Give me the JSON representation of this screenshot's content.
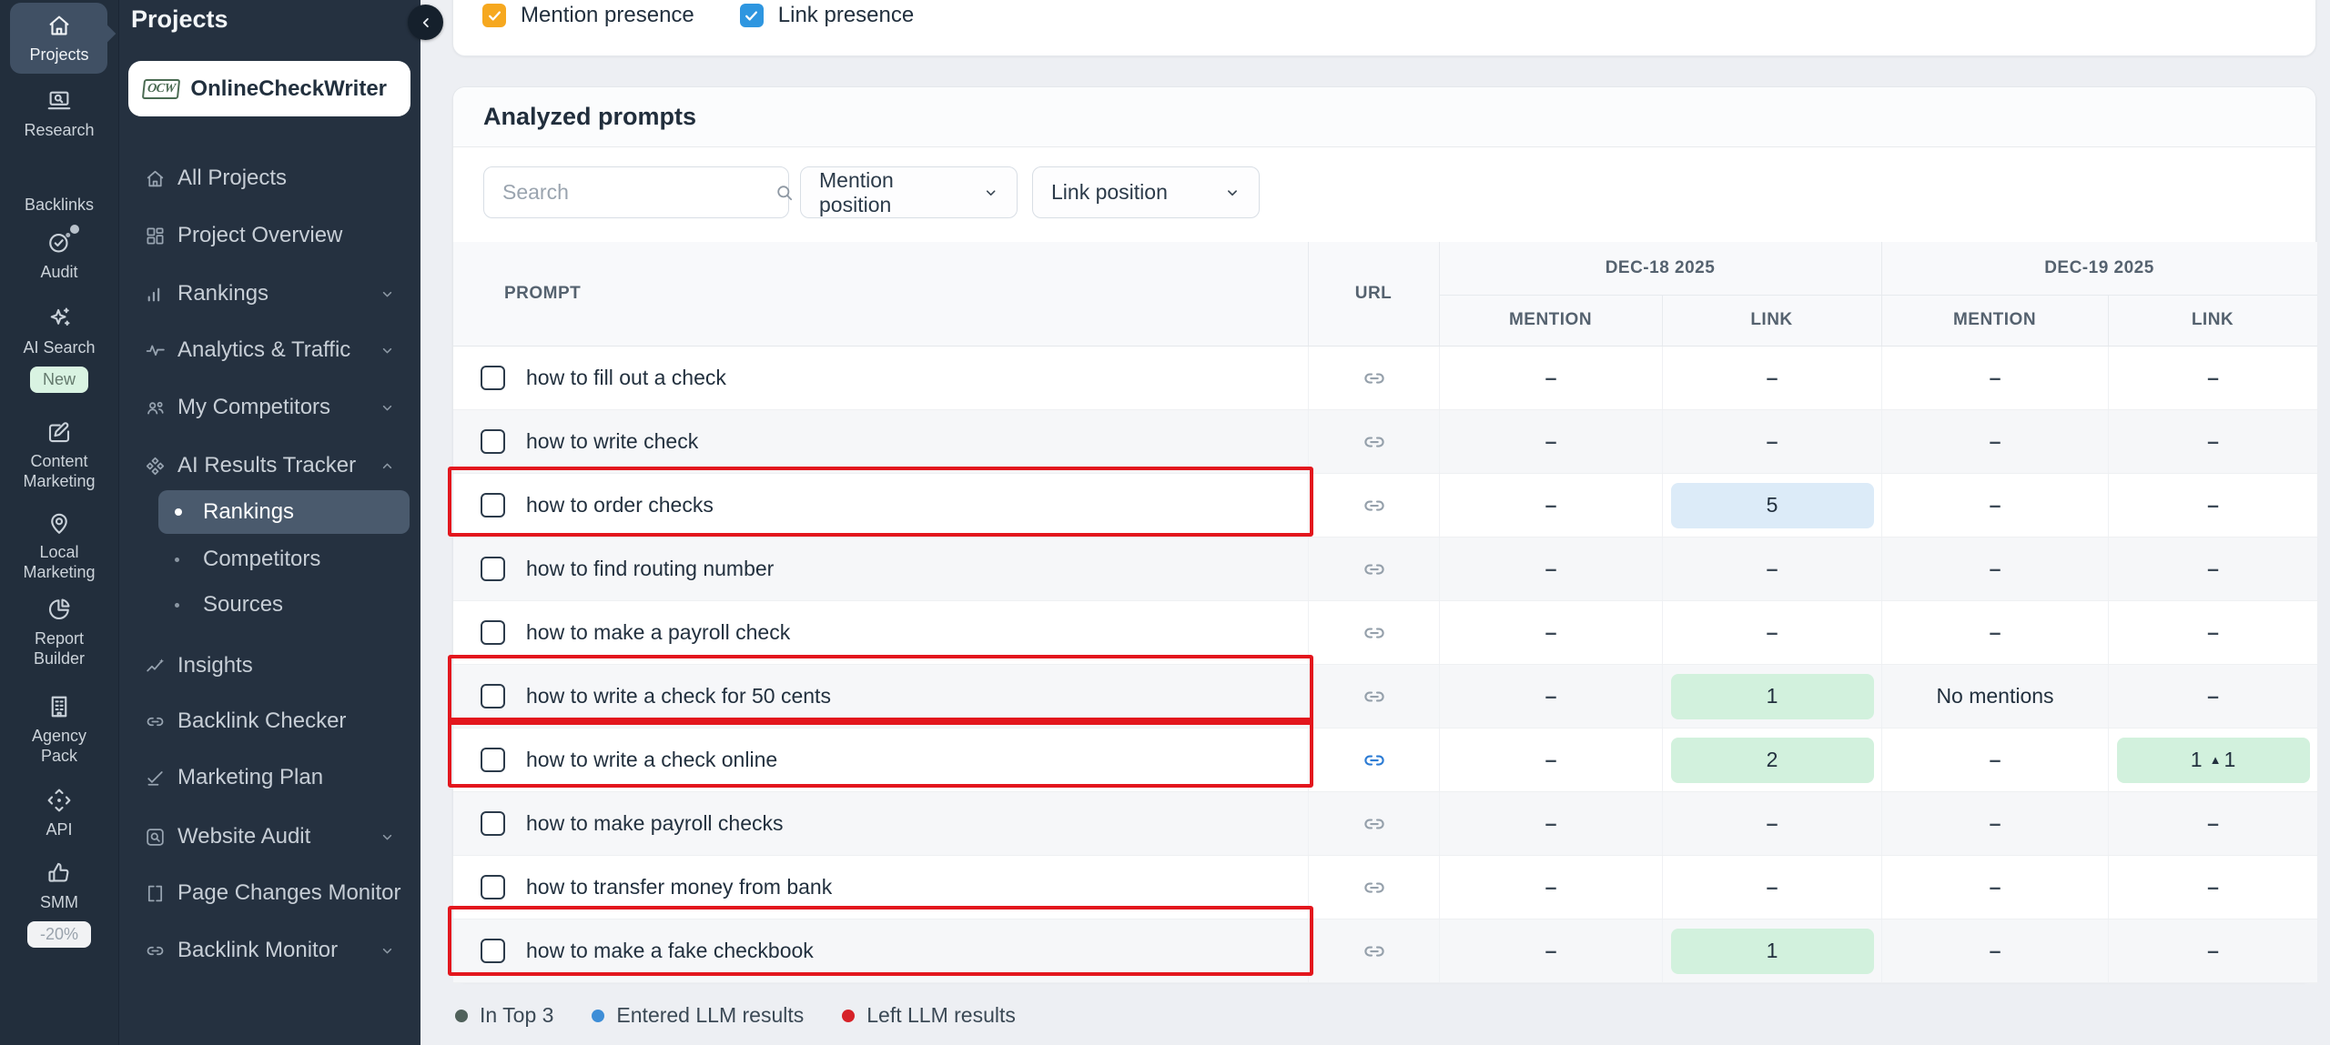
{
  "rail": {
    "items": [
      {
        "label": "Projects",
        "icon": "home",
        "selected": true
      },
      {
        "label": "Research",
        "icon": "research"
      },
      {
        "label": "Backlinks",
        "icon": "none"
      },
      {
        "label": "Audit",
        "icon": "audit",
        "notification": true
      },
      {
        "label": "AI Search",
        "icon": "sparkles",
        "badge": "New",
        "badge_style": "mint"
      },
      {
        "label": "Content Marketing",
        "icon": "content"
      },
      {
        "label": "Local Marketing",
        "icon": "pin"
      },
      {
        "label": "Report Builder",
        "icon": "pie"
      },
      {
        "label": "Agency Pack",
        "icon": "building"
      },
      {
        "label": "API",
        "icon": "api"
      },
      {
        "label": "SMM",
        "icon": "thumb",
        "badge": "-20%",
        "badge_style": "white"
      }
    ]
  },
  "sidebar": {
    "title": "Projects",
    "items": [
      {
        "label": "All Projects",
        "icon": "home"
      },
      {
        "label": "Project Overview",
        "icon": "grid"
      },
      {
        "label": "Rankings",
        "icon": "bars",
        "chevron": "down"
      },
      {
        "label": "Analytics & Traffic",
        "icon": "pulse",
        "chevron": "down"
      },
      {
        "label": "My Competitors",
        "icon": "users",
        "chevron": "down"
      },
      {
        "label": "AI Results Tracker",
        "icon": "ai",
        "chevron": "up"
      },
      {
        "label": "Rankings",
        "sub": true,
        "selected": true
      },
      {
        "label": "Competitors",
        "sub": true
      },
      {
        "label": "Sources",
        "sub": true
      },
      {
        "label": "Insights",
        "icon": "insights"
      },
      {
        "label": "Backlink Checker",
        "icon": "link"
      },
      {
        "label": "Marketing Plan",
        "icon": "plan"
      },
      {
        "label": "Website Audit",
        "icon": "auditsearch",
        "chevron": "down"
      },
      {
        "label": "Page Changes Monitor",
        "icon": "book"
      },
      {
        "label": "Backlink Monitor",
        "icon": "link",
        "chevron": "down"
      }
    ]
  },
  "project": {
    "name": "OnlineCheckWriter",
    "logo_text": "OCW"
  },
  "presence_filters": [
    {
      "label": "Mention presence",
      "checked": true,
      "color": "#f6a81f"
    },
    {
      "label": "Link presence",
      "checked": true,
      "color": "#2e96e0"
    }
  ],
  "panel": {
    "title": "Analyzed prompts",
    "search_placeholder": "Search",
    "filters": [
      {
        "label": "Mention position"
      },
      {
        "label": "Link position"
      }
    ]
  },
  "table": {
    "prompt_header": "PROMPT",
    "url_header": "URL",
    "date_groups": [
      "DEC-18 2025",
      "DEC-19 2025"
    ],
    "sub_headers": [
      "MENTION",
      "LINK"
    ],
    "empty_value": "–",
    "rows": [
      {
        "prompt": "how to fill out a check",
        "highlighted": false,
        "url_active": false,
        "cells": [
          null,
          null,
          null,
          null
        ]
      },
      {
        "prompt": "how to write check",
        "highlighted": false,
        "url_active": false,
        "cells": [
          null,
          null,
          null,
          null
        ]
      },
      {
        "prompt": "how to order checks",
        "highlighted": true,
        "url_active": false,
        "cells": [
          null,
          {
            "value": "5",
            "style": "blue"
          },
          null,
          null
        ]
      },
      {
        "prompt": "how to find routing number",
        "highlighted": false,
        "url_active": false,
        "cells": [
          null,
          null,
          null,
          null
        ]
      },
      {
        "prompt": "how to make a payroll check",
        "highlighted": false,
        "url_active": false,
        "cells": [
          null,
          null,
          null,
          null
        ]
      },
      {
        "prompt": "how to write a check for 50 cents",
        "highlighted": true,
        "url_active": false,
        "cells": [
          null,
          {
            "value": "1",
            "style": "green"
          },
          {
            "text": "No mentions"
          },
          null
        ]
      },
      {
        "prompt": "how to write a check online",
        "highlighted": true,
        "url_active": true,
        "cells": [
          null,
          {
            "value": "2",
            "style": "green"
          },
          null,
          {
            "value": "1",
            "style": "green",
            "delta": "1"
          }
        ]
      },
      {
        "prompt": "how to make payroll checks",
        "highlighted": false,
        "url_active": false,
        "cells": [
          null,
          null,
          null,
          null
        ]
      },
      {
        "prompt": "how to transfer money from bank",
        "highlighted": false,
        "url_active": false,
        "cells": [
          null,
          null,
          null,
          null
        ]
      },
      {
        "prompt": "how to make a fake checkbook",
        "highlighted": true,
        "url_active": false,
        "cells": [
          null,
          {
            "value": "1",
            "style": "green"
          },
          null,
          null
        ]
      }
    ]
  },
  "legend": [
    {
      "label": "In Top 3",
      "color": "#50615b"
    },
    {
      "label": "Entered LLM results",
      "color": "#3e8ed7"
    },
    {
      "label": "Left LLM results",
      "color": "#d62228"
    }
  ],
  "colors": {
    "highlight_red": "#e3161d",
    "badge_blue_bg": "#dcebf8",
    "badge_green_bg": "#d2f1dd",
    "selected_nav_bg": "#4a5a6d"
  }
}
